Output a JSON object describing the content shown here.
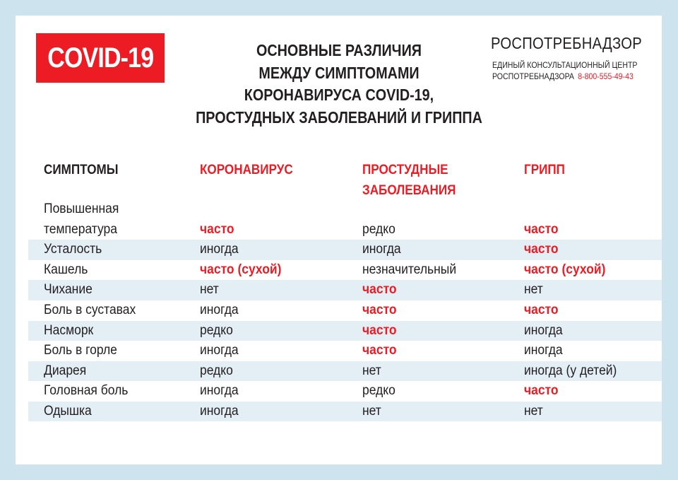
{
  "badge": "COVID-19",
  "title": [
    "ОСНОВНЫЕ РАЗЛИЧИЯ",
    "МЕЖДУ СИМПТОМАМИ",
    "КОРОНАВИРУСА COVID-19,",
    "ПРОСТУДНЫХ ЗАБОЛЕВАНИЙ И ГРИППА"
  ],
  "org": {
    "name": "РОСПОТРЕБНАДЗОР",
    "center_line1": "ЕДИНЫЙ КОНСУЛЬТАЦИОННЫЙ ЦЕНТР",
    "center_line2": "РОСПОТРЕБНАДЗОРА",
    "phone": "8-800-555-49-43"
  },
  "colors": {
    "accent": "#ed1c24",
    "background": "#cde3ee",
    "stripe": "#e3eef5"
  },
  "table": {
    "headers": [
      "СИМПТОМЫ",
      "КОРОНАВИРУС",
      "ПРОСТУДНЫЕ ЗАБОЛЕВАНИЯ",
      "ГРИПП"
    ],
    "header_lines": {
      "cold1": "ПРОСТУДНЫЕ",
      "cold2": "ЗАБОЛЕВАНИЯ"
    },
    "rows": [
      {
        "symptom_l1": "Повышенная",
        "symptom_l2": "температура",
        "covid": "часто",
        "cold": "редко",
        "flu": "часто",
        "hi": [
          1,
          0,
          1
        ]
      },
      {
        "symptom": "Усталость",
        "covid": "иногда",
        "cold": "иногда",
        "flu": "часто",
        "hi": [
          0,
          0,
          1
        ]
      },
      {
        "symptom": "Кашель",
        "covid": "часто (сухой)",
        "cold": "незначительный",
        "flu": "часто (сухой)",
        "hi": [
          1,
          0,
          1
        ]
      },
      {
        "symptom": "Чихание",
        "covid": "нет",
        "cold": "часто",
        "flu": "нет",
        "hi": [
          0,
          1,
          0
        ]
      },
      {
        "symptom": "Боль в суставах",
        "covid": "иногда",
        "cold": "часто",
        "flu": "часто",
        "hi": [
          0,
          1,
          1
        ]
      },
      {
        "symptom": "Насморк",
        "covid": "редко",
        "cold": "часто",
        "flu": "иногда",
        "hi": [
          0,
          1,
          0
        ]
      },
      {
        "symptom": "Боль в горле",
        "covid": "иногда",
        "cold": "часто",
        "flu": "иногда",
        "hi": [
          0,
          1,
          0
        ]
      },
      {
        "symptom": "Диарея",
        "covid": "редко",
        "cold": "нет",
        "flu": "иногда (у детей)",
        "hi": [
          0,
          0,
          0
        ]
      },
      {
        "symptom": "Головная боль",
        "covid": "иногда",
        "cold": "редко",
        "flu": "часто",
        "hi": [
          0,
          0,
          1
        ]
      },
      {
        "symptom": "Одышка",
        "covid": "иногда",
        "cold": "нет",
        "flu": "нет",
        "hi": [
          0,
          0,
          0
        ]
      }
    ]
  }
}
